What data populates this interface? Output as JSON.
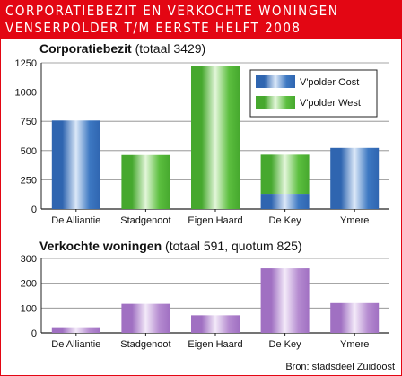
{
  "header": {
    "line1": "CORPORATIEBEZIT EN VERKOCHTE WONINGEN",
    "line2": "VENSERPOLDER T/M EERSTE HELFT 2008"
  },
  "source": "Bron: stadsdeel Zuidoost",
  "colors": {
    "accent": "#e30613",
    "oost": "#3d78c2",
    "west": "#5cbf3f",
    "verkocht": "#b58bd0"
  },
  "chart_data": [
    {
      "type": "bar",
      "title_bold": "Corporatiebezit",
      "title_rest": " (totaal 3429)",
      "categories": [
        "De Alliantie",
        "Stadgenoot",
        "Eigen Haard",
        "De Key",
        "Ymere"
      ],
      "series": [
        {
          "name": "V'polder Oost",
          "values": [
            757,
            0,
            0,
            130,
            523
          ]
        },
        {
          "name": "V'polder West",
          "values": [
            0,
            462,
            1222,
            335,
            0
          ]
        }
      ],
      "stacked": true,
      "ylim": [
        0,
        1250
      ],
      "yticks": [
        0,
        250,
        500,
        750,
        1000,
        1250
      ],
      "legend_position": "top-right",
      "grid": true
    },
    {
      "type": "bar",
      "title_bold": "Verkochte woningen",
      "title_rest": " (totaal 591, quotum 825)",
      "categories": [
        "De Alliantie",
        "Stadgenoot",
        "Eigen Haard",
        "De Key",
        "Ymere"
      ],
      "values": [
        23,
        117,
        71,
        260,
        120
      ],
      "ylim": [
        0,
        300
      ],
      "yticks": [
        0,
        100,
        200,
        300
      ],
      "grid": true
    }
  ]
}
